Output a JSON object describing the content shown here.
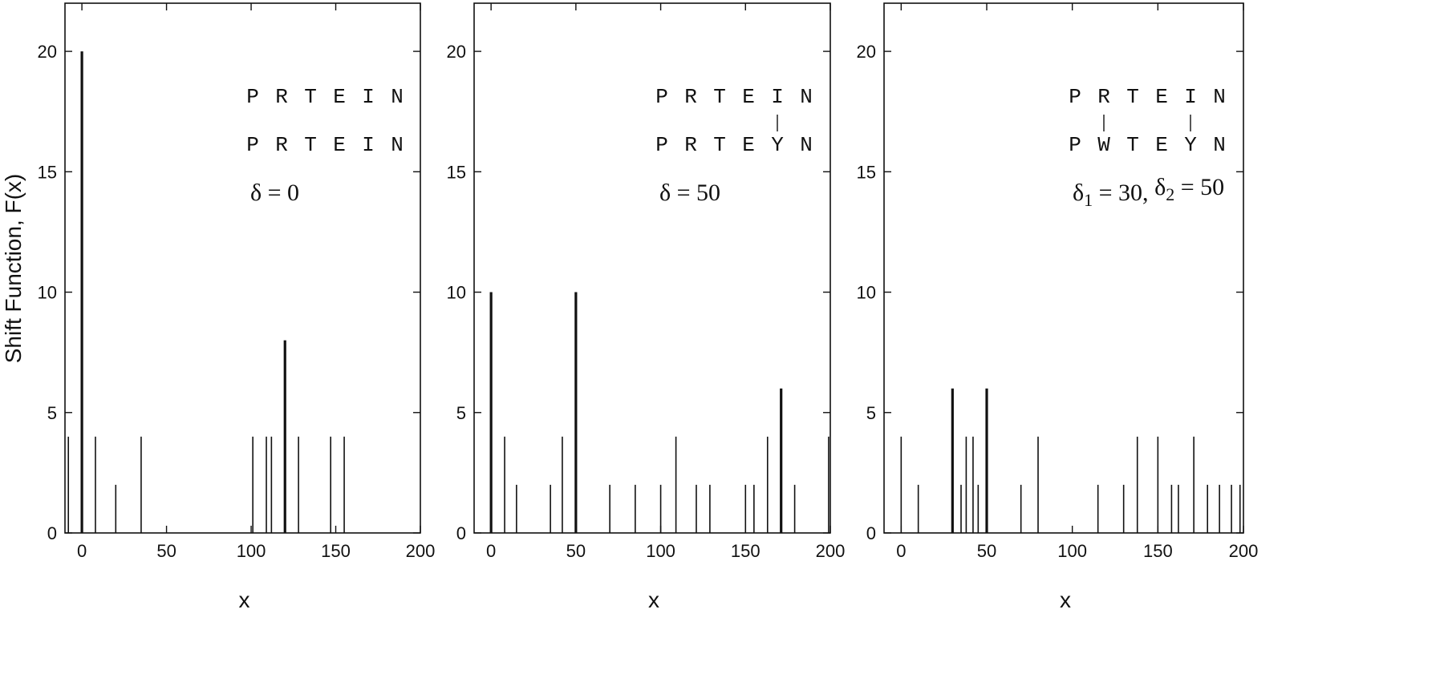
{
  "figure": {
    "ylabel": "Shift Function, F(x)",
    "xlabel": "x"
  },
  "chart_data": [
    {
      "type": "bar",
      "title": "",
      "xlabel": "x",
      "ylabel": "Shift Function, F(x)",
      "xlim": [
        -10,
        200
      ],
      "ylim": [
        0,
        22
      ],
      "xticks": [
        0,
        50,
        100,
        150,
        200
      ],
      "yticks": [
        0,
        5,
        10,
        15,
        20
      ],
      "grid": false,
      "annotation": {
        "seq1": [
          "P",
          "R",
          "T",
          "E",
          "I",
          "N"
        ],
        "seq2": [
          "P",
          "R",
          "T",
          "E",
          "I",
          "N"
        ],
        "links": [],
        "delta": "δ = 0"
      },
      "x": [
        -8,
        0,
        8,
        20,
        35,
        101,
        109,
        112,
        120,
        128,
        147,
        155
      ],
      "values": [
        4,
        20,
        4,
        2,
        4,
        4,
        4,
        4,
        8,
        4,
        4,
        4
      ]
    },
    {
      "type": "bar",
      "title": "",
      "xlabel": "x",
      "ylabel": "",
      "xlim": [
        -10,
        200
      ],
      "ylim": [
        0,
        22
      ],
      "xticks": [
        0,
        50,
        100,
        150,
        200
      ],
      "yticks": [
        0,
        5,
        10,
        15,
        20
      ],
      "grid": false,
      "annotation": {
        "seq1": [
          "P",
          "R",
          "T",
          "E",
          "I",
          "N"
        ],
        "seq2": [
          "P",
          "R",
          "T",
          "E",
          "Y",
          "N"
        ],
        "links": [
          4
        ],
        "delta": "δ = 50"
      },
      "x": [
        0,
        8,
        15,
        35,
        42,
        50,
        70,
        85,
        100,
        109,
        121,
        129,
        150,
        155,
        163,
        171,
        179,
        199
      ],
      "values": [
        10,
        4,
        2,
        2,
        4,
        10,
        2,
        2,
        2,
        4,
        2,
        2,
        2,
        2,
        4,
        6,
        2,
        4
      ]
    },
    {
      "type": "bar",
      "title": "",
      "xlabel": "x",
      "ylabel": "",
      "xlim": [
        -10,
        200
      ],
      "ylim": [
        0,
        22
      ],
      "xticks": [
        0,
        50,
        100,
        150,
        200
      ],
      "yticks": [
        0,
        5,
        10,
        15,
        20
      ],
      "grid": false,
      "annotation": {
        "seq1": [
          "P",
          "R",
          "T",
          "E",
          "I",
          "N"
        ],
        "seq2": [
          "P",
          "W",
          "T",
          "E",
          "Y",
          "N"
        ],
        "links": [
          1,
          4
        ],
        "delta_parts": [
          "δ",
          "1",
          " = 30, ",
          "δ",
          "2",
          " = 50"
        ]
      },
      "x": [
        0,
        10,
        30,
        35,
        38,
        42,
        45,
        50,
        70,
        80,
        115,
        130,
        138,
        150,
        158,
        162,
        171,
        179,
        186,
        193,
        198
      ],
      "values": [
        4,
        2,
        6,
        2,
        4,
        4,
        2,
        6,
        2,
        4,
        2,
        2,
        4,
        4,
        2,
        2,
        4,
        2,
        2,
        2,
        2
      ]
    }
  ]
}
